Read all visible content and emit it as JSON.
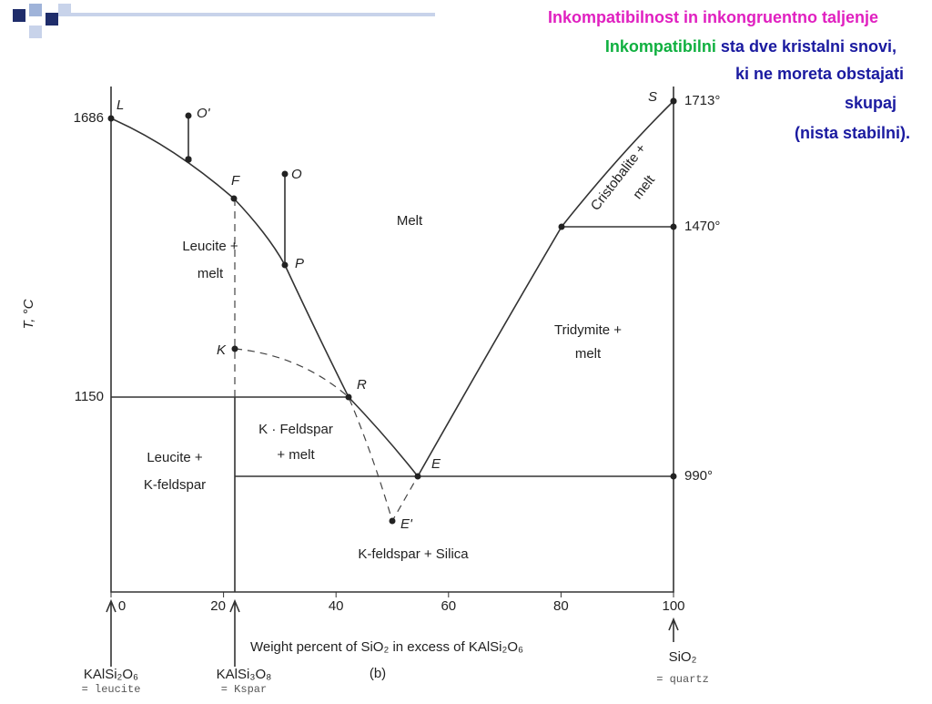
{
  "header": {
    "title": "Inkompatibilnost in inkongruentno taljenje",
    "term": "Inkompatibilni",
    "term_rest": "sta dve kristalni snovi,",
    "lines": [
      "ki ne moreta obstajati",
      "skupaj",
      "(nista stabilni)."
    ]
  },
  "diagram": {
    "y_axis_label": "T, °C",
    "x_axis_label": "Weight percent of SiO₂ in excess of KAlSi₂O₆",
    "panel": "(b)",
    "left_temperatures": [
      1686,
      1150
    ],
    "right_temperatures": [
      "1713°",
      "1470°",
      "990°"
    ],
    "xticks": [
      0,
      20,
      40,
      60,
      80,
      100
    ],
    "points": [
      "L",
      "O'",
      "O",
      "F",
      "P",
      "K",
      "R",
      "E",
      "E'",
      "S"
    ],
    "regions": {
      "melt": "Melt",
      "leucite_melt": [
        "Leucite +",
        "melt"
      ],
      "cristobalite_melt": [
        "Cristobalite +",
        "melt"
      ],
      "tridymite_melt": [
        "Tridymite +",
        "melt"
      ],
      "kfeldspar_melt": [
        "K · Feldspar",
        "+ melt"
      ],
      "leucite_kfeldspar": [
        "Leucite +",
        "K-feldspar"
      ],
      "kfeldspar_silica": "K-feldspar + Silica"
    },
    "compounds": [
      {
        "formula": "KAlSi₂O₆",
        "name": "= leucite"
      },
      {
        "formula": "KAlSi₃O₈",
        "name": "= Kspar"
      },
      {
        "formula": "SiO₂",
        "name": "= quartz"
      }
    ]
  }
}
